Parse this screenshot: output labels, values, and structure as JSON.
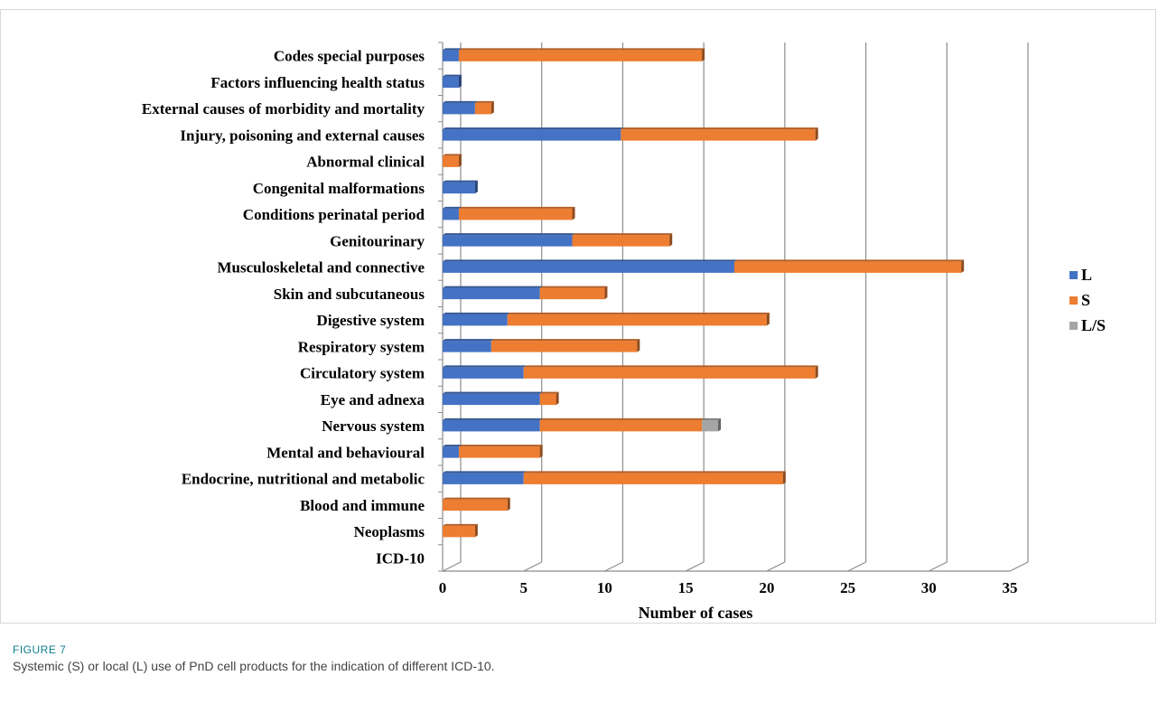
{
  "figure": {
    "label": "FIGURE 7",
    "caption": "Systemic (S) or local (L) use of PnD cell products for the indication of different ICD-10."
  },
  "chart_data": {
    "type": "bar",
    "orientation": "horizontal",
    "stacked": true,
    "categories": [
      "ICD-10",
      "Neoplasms",
      "Blood and immune",
      "Endocrine, nutritional and metabolic",
      "Mental and behavioural",
      "Nervous system",
      "Eye and adnexa",
      "Circulatory system",
      "Respiratory system",
      "Digestive system",
      "Skin and subcutaneous",
      "Musculoskeletal and connective",
      "Genitourinary",
      "Conditions perinatal period",
      "Congenital malformations",
      "Abnormal clinical",
      "Injury, poisoning and external causes",
      "External causes of morbidity and mortality",
      "Factors influencing health status",
      "Codes special purposes"
    ],
    "series": [
      {
        "name": "L",
        "color": "#4472c4",
        "values": [
          0,
          0,
          0,
          5,
          1,
          6,
          6,
          5,
          3,
          4,
          6,
          18,
          8,
          1,
          2,
          0,
          11,
          2,
          1,
          1
        ]
      },
      {
        "name": "S",
        "color": "#ed7d31",
        "values": [
          0,
          2,
          4,
          16,
          5,
          10,
          1,
          18,
          9,
          16,
          4,
          14,
          6,
          7,
          0,
          1,
          12,
          1,
          0,
          15
        ]
      },
      {
        "name": "L/S",
        "color": "#a5a5a5",
        "values": [
          0,
          0,
          0,
          0,
          0,
          1,
          0,
          0,
          0,
          0,
          0,
          0,
          0,
          0,
          0,
          0,
          0,
          0,
          0,
          0
        ]
      }
    ],
    "xlabel": "Number of cases",
    "ylabel": "",
    "xlim": [
      0,
      35
    ],
    "xticks": [
      0,
      5,
      10,
      15,
      20,
      25,
      30,
      35
    ],
    "grid": true,
    "legend": "right"
  }
}
